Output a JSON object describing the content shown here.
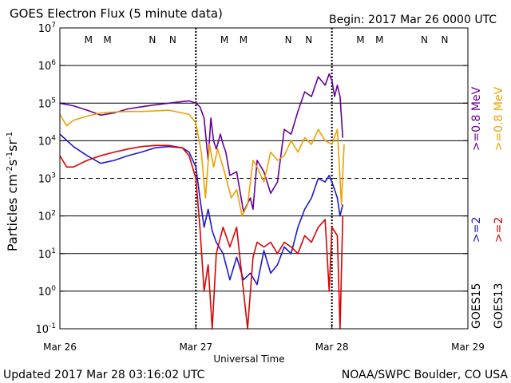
{
  "header": {
    "title": "GOES Electron Flux (5 minute data)",
    "begin": "Begin: 2017 Mar 26 0000 UTC"
  },
  "footer": {
    "updated": "Updated 2017 Mar 28 03:16:02 UTC",
    "credit": "NOAA/SWPC Boulder, CO USA"
  },
  "chart_data": {
    "type": "line",
    "title": "GOES Electron Flux (5 minute data)",
    "xlabel": "Universal Time",
    "ylabel_parts": [
      "Particles cm",
      "-2",
      "s",
      "-1",
      "sr",
      "-1"
    ],
    "xlim": [
      0,
      3
    ],
    "ylim_log10": [
      -1,
      7
    ],
    "x_ticks": [
      {
        "value": 0,
        "label": "Mar 26"
      },
      {
        "value": 1,
        "label": "Mar 27"
      },
      {
        "value": 2,
        "label": "Mar 28"
      },
      {
        "value": 3,
        "label": "Mar 29"
      }
    ],
    "y_ticks": [
      {
        "exp": -1,
        "base": "10",
        "sup": "-1"
      },
      {
        "exp": 0,
        "base": "10",
        "sup": "0"
      },
      {
        "exp": 1,
        "base": "10",
        "sup": "1"
      },
      {
        "exp": 2,
        "base": "10",
        "sup": "2"
      },
      {
        "exp": 3,
        "base": "10",
        "sup": "3"
      },
      {
        "exp": 4,
        "base": "10",
        "sup": "4"
      },
      {
        "exp": 5,
        "base": "10",
        "sup": "5"
      },
      {
        "exp": 6,
        "base": "10",
        "sup": "6"
      },
      {
        "exp": 7,
        "base": "10",
        "sup": "7"
      }
    ],
    "threshold_line_log10": 3,
    "mn_markers": [
      {
        "x": 0.21,
        "label": "M",
        "color": "#dd0000"
      },
      {
        "x": 0.35,
        "label": "M",
        "color": "#1a1acc"
      },
      {
        "x": 0.68,
        "label": "N",
        "color": "#dd0000"
      },
      {
        "x": 0.83,
        "label": "N",
        "color": "#1a1acc"
      },
      {
        "x": 1.21,
        "label": "M",
        "color": "#dd0000"
      },
      {
        "x": 1.35,
        "label": "M",
        "color": "#1a1acc"
      },
      {
        "x": 1.68,
        "label": "N",
        "color": "#dd0000"
      },
      {
        "x": 1.83,
        "label": "N",
        "color": "#1a1acc"
      },
      {
        "x": 2.21,
        "label": "M",
        "color": "#dd0000"
      },
      {
        "x": 2.35,
        "label": "M",
        "color": "#1a1acc"
      },
      {
        "x": 2.68,
        "label": "N",
        "color": "#dd0000"
      },
      {
        "x": 2.83,
        "label": "N",
        "color": "#1a1acc"
      }
    ],
    "legend": {
      "left_column": [
        {
          "text": ">=0.8 MeV",
          "color": "#660099"
        },
        {
          "text": ">=2",
          "color": "#1a1acc"
        },
        {
          "text": "GOES15",
          "color": "#000000"
        }
      ],
      "right_column": [
        {
          "text": ">=0.8 MeV",
          "color": "#f0a000"
        },
        {
          "text": ">=2",
          "color": "#dd0000"
        },
        {
          "text": "GOES13",
          "color": "#000000"
        }
      ]
    },
    "series": [
      {
        "name": "GOES15 >=0.8 MeV",
        "color": "#660099",
        "points": [
          [
            0,
            100000.0
          ],
          [
            0.1,
            85000.0
          ],
          [
            0.2,
            65000.0
          ],
          [
            0.3,
            48000.0
          ],
          [
            0.4,
            55000.0
          ],
          [
            0.5,
            70000.0
          ],
          [
            0.6,
            80000.0
          ],
          [
            0.7,
            90000.0
          ],
          [
            0.8,
            100000.0
          ],
          [
            0.9,
            110000.0
          ],
          [
            0.95,
            115000.0
          ],
          [
            1.0,
            100000.0
          ],
          [
            1.03,
            80000.0
          ],
          [
            1.06,
            40000.0
          ],
          [
            1.09,
            3000.0
          ],
          [
            1.11,
            40000.0
          ],
          [
            1.13,
            10000.0
          ],
          [
            1.15,
            6000.0
          ],
          [
            1.18,
            15000.0
          ],
          [
            1.2,
            8000.0
          ],
          [
            1.22,
            5000.0
          ],
          [
            1.25,
            1200.0
          ],
          [
            1.3,
            1500.0
          ],
          [
            1.35,
            130.0
          ],
          [
            1.4,
            300.0
          ],
          [
            1.42,
            150.0
          ],
          [
            1.45,
            3000.0
          ],
          [
            1.5,
            1500.0
          ],
          [
            1.55,
            400.0
          ],
          [
            1.6,
            800.0
          ],
          [
            1.65,
            20000.0
          ],
          [
            1.7,
            15000.0
          ],
          [
            1.75,
            60000.0
          ],
          [
            1.8,
            200000.0
          ],
          [
            1.85,
            150000.0
          ],
          [
            1.9,
            500000.0
          ],
          [
            1.95,
            300000.0
          ],
          [
            1.98,
            600000.0
          ],
          [
            2.0,
            400000.0
          ],
          [
            2.02,
            150000.0
          ],
          [
            2.04,
            300000.0
          ],
          [
            2.06,
            150000.0
          ],
          [
            2.08,
            12000.0
          ]
        ]
      },
      {
        "name": "GOES13 >=0.8 MeV",
        "color": "#f0a000",
        "points": [
          [
            0,
            50000.0
          ],
          [
            0.05,
            25000.0
          ],
          [
            0.1,
            35000.0
          ],
          [
            0.2,
            45000.0
          ],
          [
            0.3,
            55000.0
          ],
          [
            0.4,
            58000.0
          ],
          [
            0.5,
            60000.0
          ],
          [
            0.6,
            60000.0
          ],
          [
            0.7,
            62000.0
          ],
          [
            0.8,
            65000.0
          ],
          [
            0.9,
            55000.0
          ],
          [
            0.95,
            50000.0
          ],
          [
            1.0,
            30000.0
          ],
          [
            1.04,
            5000.0
          ],
          [
            1.07,
            300.0
          ],
          [
            1.1,
            8000.0
          ],
          [
            1.13,
            2000.0
          ],
          [
            1.16,
            6000.0
          ],
          [
            1.2,
            2000.0
          ],
          [
            1.23,
            800.0
          ],
          [
            1.26,
            300.0
          ],
          [
            1.3,
            500.0
          ],
          [
            1.34,
            100.0
          ],
          [
            1.38,
            200.0
          ],
          [
            1.42,
            3000.0
          ],
          [
            1.45,
            2000.0
          ],
          [
            1.5,
            800.0
          ],
          [
            1.55,
            5000.0
          ],
          [
            1.6,
            3000.0
          ],
          [
            1.65,
            4000.0
          ],
          [
            1.7,
            10000.0
          ],
          [
            1.75,
            5000.0
          ],
          [
            1.8,
            12000.0
          ],
          [
            1.85,
            8000.0
          ],
          [
            1.9,
            20000.0
          ],
          [
            1.95,
            10000.0
          ],
          [
            2.0,
            8000.0
          ],
          [
            2.04,
            20000.0
          ],
          [
            2.07,
            200.0
          ],
          [
            2.09,
            8000.0
          ]
        ]
      },
      {
        "name": "GOES15 >=2 MeV",
        "color": "#1a1acc",
        "points": [
          [
            0,
            15000.0
          ],
          [
            0.1,
            7000.0
          ],
          [
            0.2,
            4000.0
          ],
          [
            0.3,
            2500.0
          ],
          [
            0.4,
            3000.0
          ],
          [
            0.5,
            4000.0
          ],
          [
            0.6,
            5000.0
          ],
          [
            0.7,
            6500.0
          ],
          [
            0.8,
            7000.0
          ],
          [
            0.9,
            6500.0
          ],
          [
            0.95,
            5000.0
          ],
          [
            1.0,
            2000.0
          ],
          [
            1.03,
            300.0
          ],
          [
            1.06,
            50.0
          ],
          [
            1.09,
            150.0
          ],
          [
            1.12,
            40.0
          ],
          [
            1.15,
            20.0
          ],
          [
            1.2,
            10.0
          ],
          [
            1.25,
            2.0
          ],
          [
            1.3,
            8.0
          ],
          [
            1.35,
            2.0
          ],
          [
            1.4,
            3.0
          ],
          [
            1.45,
            1.5
          ],
          [
            1.5,
            12.0
          ],
          [
            1.55,
            3.0
          ],
          [
            1.6,
            5.0
          ],
          [
            1.65,
            15.0
          ],
          [
            1.7,
            10.0
          ],
          [
            1.75,
            50.0
          ],
          [
            1.8,
            150.0
          ],
          [
            1.85,
            300.0
          ],
          [
            1.9,
            1000.0
          ],
          [
            1.95,
            800.0
          ],
          [
            1.98,
            1200.0
          ],
          [
            2.0,
            800.0
          ],
          [
            2.02,
            500.0
          ],
          [
            2.04,
            300.0
          ],
          [
            2.06,
            100.0
          ],
          [
            2.08,
            200.0
          ]
        ]
      },
      {
        "name": "GOES13 >=2 MeV",
        "color": "#dd0000",
        "points": [
          [
            0,
            4000.0
          ],
          [
            0.05,
            2000.0
          ],
          [
            0.1,
            2000.0
          ],
          [
            0.2,
            3000.0
          ],
          [
            0.3,
            4000.0
          ],
          [
            0.4,
            5000.0
          ],
          [
            0.5,
            6000.0
          ],
          [
            0.6,
            7000.0
          ],
          [
            0.7,
            7500.0
          ],
          [
            0.8,
            7500.0
          ],
          [
            0.9,
            6500.0
          ],
          [
            0.95,
            4000.0
          ],
          [
            1.0,
            1000.0
          ],
          [
            1.03,
            50.0
          ],
          [
            1.06,
            1.0
          ],
          [
            1.09,
            5.0
          ],
          [
            1.12,
            0.1
          ],
          [
            1.15,
            10.0
          ],
          [
            1.2,
            50.0
          ],
          [
            1.25,
            15.0
          ],
          [
            1.3,
            50.0
          ],
          [
            1.35,
            1.0
          ],
          [
            1.38,
            0.1
          ],
          [
            1.42,
            8.0
          ],
          [
            1.45,
            20.0
          ],
          [
            1.5,
            15.0
          ],
          [
            1.55,
            20.0
          ],
          [
            1.6,
            10.0
          ],
          [
            1.65,
            20.0
          ],
          [
            1.7,
            15.0
          ],
          [
            1.75,
            10.0
          ],
          [
            1.8,
            30.0
          ],
          [
            1.85,
            20.0
          ],
          [
            1.9,
            50.0
          ],
          [
            1.95,
            80.0
          ],
          [
            1.98,
            1.0
          ],
          [
            2.0,
            50.0
          ],
          [
            2.04,
            30.0
          ],
          [
            2.06,
            0.1
          ],
          [
            2.08,
            100.0
          ]
        ]
      }
    ]
  }
}
